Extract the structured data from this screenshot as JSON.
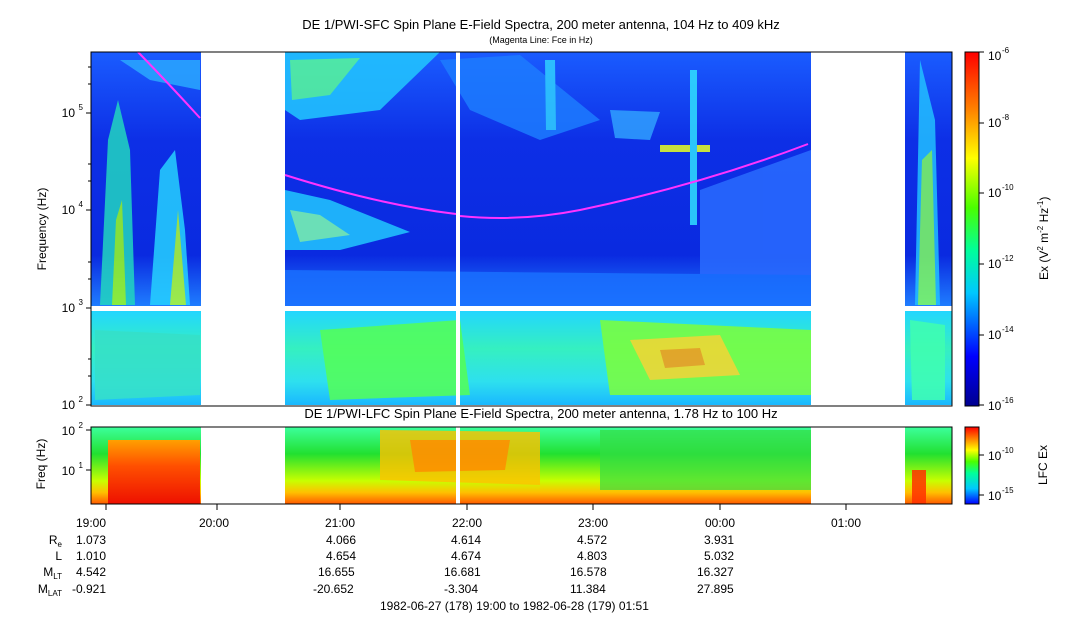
{
  "chart_data": [
    {
      "type": "heatmap",
      "title": "DE 1/PWI-SFC  Spin Plane E-Field Spectra, 200 meter antenna, 104 Hz to 409 kHz",
      "subtitle": "(Magenta Line: Fce in Hz)",
      "ylabel": "Frequency (Hz)",
      "yscale": "log",
      "ylim": [
        100,
        409000
      ],
      "yticks": [
        "10^2",
        "10^3",
        "10^4",
        "10^5"
      ],
      "colorbar": {
        "label": "Ex (V^2 m^-2 Hz^-1)",
        "scale": "log",
        "range": [
          1e-16,
          1e-06
        ],
        "ticks": [
          "10^-6",
          "10^-8",
          "10^-10",
          "10^-12",
          "10^-14",
          "10^-16"
        ],
        "colormap": "rainbow"
      },
      "data_gaps_utc": [
        [
          "19:56",
          "20:37"
        ],
        [
          "00:42",
          "01:30"
        ]
      ],
      "fce_line_hz": [
        {
          "time": "19:20",
          "value": 400000
        },
        {
          "time": "19:45",
          "value": 100000
        },
        {
          "time": "20:37",
          "value": 22000
        },
        {
          "time": "21:10",
          "value": 13000
        },
        {
          "time": "21:45",
          "value": 9000
        },
        {
          "time": "22:00",
          "value": 8500
        },
        {
          "time": "22:30",
          "value": 8500
        },
        {
          "time": "23:00",
          "value": 10000
        },
        {
          "time": "23:30",
          "value": 13500
        },
        {
          "time": "00:00",
          "value": 19000
        },
        {
          "time": "00:20",
          "value": 28000
        },
        {
          "time": "00:42",
          "value": 45000
        }
      ]
    },
    {
      "type": "heatmap",
      "title": "DE 1/PWI-LFC  Spin Plane E-Field Spectra, 200 meter antenna, 1.78 Hz to 100 Hz",
      "ylabel": "Freq (Hz)",
      "yscale": "log",
      "ylim": [
        1.78,
        100
      ],
      "yticks": [
        "10^1",
        "10^2"
      ],
      "colorbar": {
        "label": "LFC Ex",
        "scale": "log",
        "range": [
          1e-16,
          1e-08
        ],
        "ticks": [
          "10^-10",
          "10^-15"
        ],
        "colormap": "rainbow"
      },
      "data_gaps_utc": [
        [
          "19:56",
          "20:37"
        ],
        [
          "00:42",
          "01:30"
        ]
      ]
    }
  ],
  "time_axis": {
    "ticks": [
      "19:00",
      "20:00",
      "21:00",
      "22:00",
      "23:00",
      "00:00",
      "01:00"
    ],
    "range_label": "1982-06-27 (178) 19:00 to 1982-06-28 (179) 01:51"
  },
  "ephemeris": {
    "rows": [
      {
        "label": "R",
        "sub": "e",
        "values": [
          "1.073",
          "4.066",
          "4.614",
          "4.572",
          "3.931"
        ]
      },
      {
        "label": "L",
        "sub": "",
        "values": [
          "1.010",
          "4.654",
          "4.674",
          "4.803",
          "5.032"
        ]
      },
      {
        "label": "M",
        "sub": "LT",
        "values": [
          "4.542",
          "16.655",
          "16.681",
          "16.578",
          "16.327"
        ]
      },
      {
        "label": "M",
        "sub": "LAT",
        "values": [
          "-0.921",
          "-20.652",
          "-3.304",
          "11.384",
          "27.895"
        ]
      }
    ]
  },
  "colors": {
    "fce_line": "#ff33ff",
    "background": "#ffffff"
  }
}
